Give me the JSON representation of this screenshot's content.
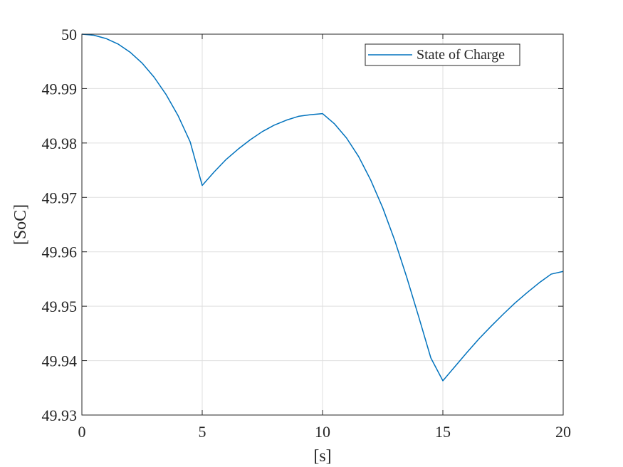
{
  "chart_data": {
    "type": "line",
    "title": "",
    "xlabel": "[s]",
    "ylabel": "[SoC]",
    "xlim": [
      0,
      20
    ],
    "ylim": [
      49.93,
      50
    ],
    "xticks": [
      0,
      5,
      10,
      15,
      20
    ],
    "yticks": [
      49.93,
      49.94,
      49.95,
      49.96,
      49.97,
      49.98,
      49.99,
      50
    ],
    "xtick_labels": [
      "0",
      "5",
      "10",
      "15",
      "20"
    ],
    "ytick_labels": [
      "49.93",
      "49.94",
      "49.95",
      "49.96",
      "49.97",
      "49.98",
      "49.99",
      "50"
    ],
    "grid": true,
    "legend_position": "top-right",
    "series": [
      {
        "name": "State of Charge",
        "color": "#0072BD",
        "x": [
          0,
          0.5,
          1,
          1.5,
          2,
          2.5,
          3,
          3.5,
          4,
          4.5,
          5,
          5.5,
          6,
          6.5,
          7,
          7.5,
          8,
          8.5,
          9,
          9.5,
          10,
          10.5,
          11,
          11.5,
          12,
          12.5,
          13,
          13.5,
          14,
          14.5,
          15,
          15.5,
          16,
          16.5,
          17,
          17.5,
          18,
          18.5,
          19,
          19.5,
          20
        ],
        "y": [
          50.0,
          49.9998,
          49.9992,
          49.9982,
          49.9967,
          49.9947,
          49.9921,
          49.9889,
          49.985,
          49.9802,
          49.9722,
          49.9747,
          49.977,
          49.9789,
          49.9806,
          49.9821,
          49.9833,
          49.9842,
          49.9849,
          49.9852,
          49.9854,
          49.9835,
          49.9809,
          49.9775,
          49.9732,
          49.9681,
          49.9621,
          49.9553,
          49.948,
          49.9405,
          49.9363,
          49.9389,
          49.9415,
          49.944,
          49.9463,
          49.9485,
          49.9506,
          49.9525,
          49.9543,
          49.9559,
          49.9564
        ]
      }
    ]
  }
}
